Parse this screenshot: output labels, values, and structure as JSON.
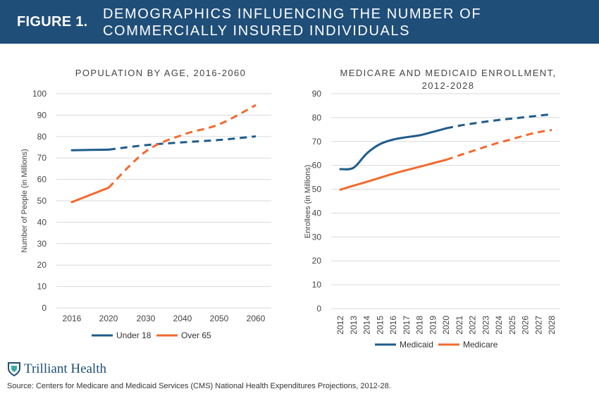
{
  "header": {
    "figure_label": "FIGURE 1.",
    "title_line1": "DEMOGRAPHICS INFLUENCING THE NUMBER OF",
    "title_line2": "COMMERCIALLY INSURED INDIVIDUALS"
  },
  "colors": {
    "banner": "#1f4e79",
    "blue": "#1f5c8b",
    "orange": "#f26a2e",
    "grid": "#d9d9d9"
  },
  "chart_data": [
    {
      "type": "line",
      "title": "POPULATION BY AGE, 2016-2060",
      "xlabel": "",
      "ylabel": "Number of People (in Millions)",
      "categories": [
        "2016",
        "2020",
        "2030",
        "2040",
        "2050",
        "2060"
      ],
      "ylim": [
        0,
        100
      ],
      "yticks": [
        "0",
        "10",
        "20",
        "30",
        "40",
        "50",
        "60",
        "70",
        "80",
        "90",
        "100"
      ],
      "grid": true,
      "legend": "bottom",
      "series": [
        {
          "name": "Under 18",
          "color": "#1f5c8b",
          "values": [
            73.6,
            73.9,
            76.0,
            77.3,
            78.4,
            80.1
          ],
          "solid_until_index": 1
        },
        {
          "name": "Over 65",
          "color": "#f26a2e",
          "values": [
            49.4,
            56.1,
            73.1,
            80.8,
            85.7,
            94.7
          ],
          "solid_until_index": 1
        }
      ]
    },
    {
      "type": "line",
      "title_line1": "MEDICARE AND MEDICAID ENROLLMENT,",
      "title_line2": "2012-2028",
      "xlabel": "",
      "ylabel": "Enrollees (in Millions)",
      "categories": [
        "2012",
        "2013",
        "2014",
        "2015",
        "2016",
        "2017",
        "2018",
        "2019",
        "2020",
        "2021",
        "2022",
        "2023",
        "2024",
        "2025",
        "2026",
        "2027",
        "2028"
      ],
      "ylim": [
        0,
        90
      ],
      "yticks": [
        "0",
        "10",
        "20",
        "30",
        "40",
        "50",
        "60",
        "70",
        "80",
        "90"
      ],
      "grid": true,
      "legend": "bottom",
      "series": [
        {
          "name": "Medicaid",
          "color": "#1f5c8b",
          "values": [
            58.4,
            59.0,
            65.0,
            68.9,
            70.8,
            71.8,
            72.6,
            74.0,
            75.5,
            76.6,
            77.5,
            78.3,
            79.0,
            79.6,
            80.2,
            80.8,
            81.4
          ],
          "solid_until_index": 8
        },
        {
          "name": "Medicare",
          "color": "#f26a2e",
          "values": [
            49.8,
            51.5,
            53.1,
            54.8,
            56.5,
            58.0,
            59.4,
            60.9,
            62.3,
            64.2,
            66.0,
            67.8,
            69.5,
            71.0,
            72.6,
            73.9,
            74.8
          ],
          "solid_until_index": 8
        }
      ]
    }
  ],
  "footer": {
    "logo_text": "Trilliant Health",
    "source": "Source: Centers for Medicare and Medicaid Services (CMS) National Health Expenditures Projections, 2012-28."
  }
}
